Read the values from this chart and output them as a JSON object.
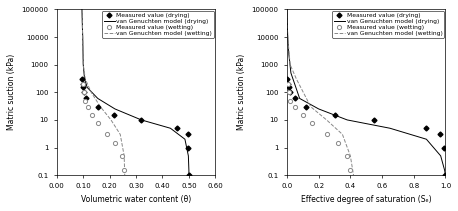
{
  "left_plot": {
    "xlabel": "Volumetric water content (θ)",
    "ylabel": "Matric suction (kPa)",
    "xlim": [
      0.0,
      0.6
    ],
    "xticks": [
      0.0,
      0.1,
      0.2,
      0.3,
      0.4,
      0.5,
      0.6
    ],
    "ylim_log": [
      0.1,
      100000
    ],
    "yticks": [
      0.1,
      1,
      10,
      100,
      1000,
      10000,
      100000
    ],
    "ytick_labels": [
      "0.1",
      "1",
      "10",
      "100",
      "1000",
      "10000",
      "100000"
    ],
    "drying_measured_x": [
      0.097,
      0.098,
      0.1,
      0.103,
      0.11,
      0.155,
      0.215,
      0.32,
      0.455,
      0.495,
      0.498,
      0.5
    ],
    "drying_measured_y": [
      300,
      200,
      150,
      100,
      60,
      30,
      15,
      10,
      5,
      3,
      1,
      0.1
    ],
    "wetting_measured_x": [
      0.098,
      0.102,
      0.108,
      0.118,
      0.135,
      0.155,
      0.19,
      0.22,
      0.245,
      0.255
    ],
    "wetting_measured_y": [
      200,
      100,
      50,
      30,
      15,
      8,
      3,
      1.5,
      0.5,
      0.15
    ],
    "drying_model_x": [
      0.095,
      0.096,
      0.097,
      0.098,
      0.099,
      0.1,
      0.105,
      0.115,
      0.155,
      0.22,
      0.32,
      0.43,
      0.485,
      0.498,
      0.5,
      0.5,
      0.5
    ],
    "drying_model_y": [
      100000,
      50000,
      20000,
      10000,
      3000,
      1000,
      300,
      150,
      60,
      25,
      10,
      5,
      2,
      0.5,
      0.15,
      0.12,
      0.1
    ],
    "wetting_model_x": [
      0.095,
      0.096,
      0.097,
      0.098,
      0.1,
      0.108,
      0.13,
      0.165,
      0.205,
      0.24,
      0.255,
      0.257
    ],
    "wetting_model_y": [
      100000,
      50000,
      20000,
      10000,
      1000,
      300,
      100,
      30,
      10,
      3,
      0.5,
      0.1
    ]
  },
  "right_plot": {
    "xlabel": "Effective degree of saturation (Sₑ)",
    "ylabel": "Matric suction (kPa)",
    "xlim": [
      0.0,
      1.0
    ],
    "xticks": [
      0.0,
      0.2,
      0.4,
      0.6,
      0.8,
      1.0
    ],
    "ylim_log": [
      0.1,
      100000
    ],
    "yticks": [
      0.1,
      1,
      10,
      100,
      1000,
      10000,
      100000
    ],
    "ytick_labels": [
      "0.1",
      "1",
      "10",
      "100",
      "1000",
      "10000",
      "100000"
    ],
    "drying_measured_x": [
      0.0,
      0.005,
      0.01,
      0.02,
      0.05,
      0.12,
      0.3,
      0.55,
      0.88,
      0.965,
      0.99,
      1.0
    ],
    "drying_measured_y": [
      300,
      200,
      150,
      100,
      60,
      30,
      15,
      10,
      5,
      3,
      1,
      0.1
    ],
    "wetting_measured_x": [
      0.005,
      0.01,
      0.02,
      0.05,
      0.1,
      0.16,
      0.25,
      0.32,
      0.38,
      0.4
    ],
    "wetting_measured_y": [
      200,
      100,
      50,
      30,
      15,
      8,
      3,
      1.5,
      0.5,
      0.15
    ],
    "drying_model_x": [
      0.0,
      0.001,
      0.003,
      0.005,
      0.01,
      0.025,
      0.08,
      0.2,
      0.38,
      0.65,
      0.88,
      0.97,
      0.995,
      1.0,
      1.0
    ],
    "drying_model_y": [
      100000,
      50000,
      20000,
      10000,
      3000,
      500,
      60,
      25,
      10,
      5,
      2,
      0.5,
      0.15,
      0.1,
      0.1
    ],
    "wetting_model_x": [
      0.0,
      0.001,
      0.003,
      0.005,
      0.02,
      0.06,
      0.15,
      0.25,
      0.35,
      0.4,
      0.42
    ],
    "wetting_model_y": [
      100000,
      50000,
      20000,
      10000,
      1000,
      300,
      30,
      10,
      3,
      0.5,
      0.1
    ]
  },
  "legend_labels": [
    "Measured value (drying)",
    "van Genuchten model (drying)",
    "Measured value (wetting)",
    "van Genuchten model (wetting)"
  ],
  "color_drying": "black",
  "color_wetting": "#888888",
  "fontsize": 5.5
}
